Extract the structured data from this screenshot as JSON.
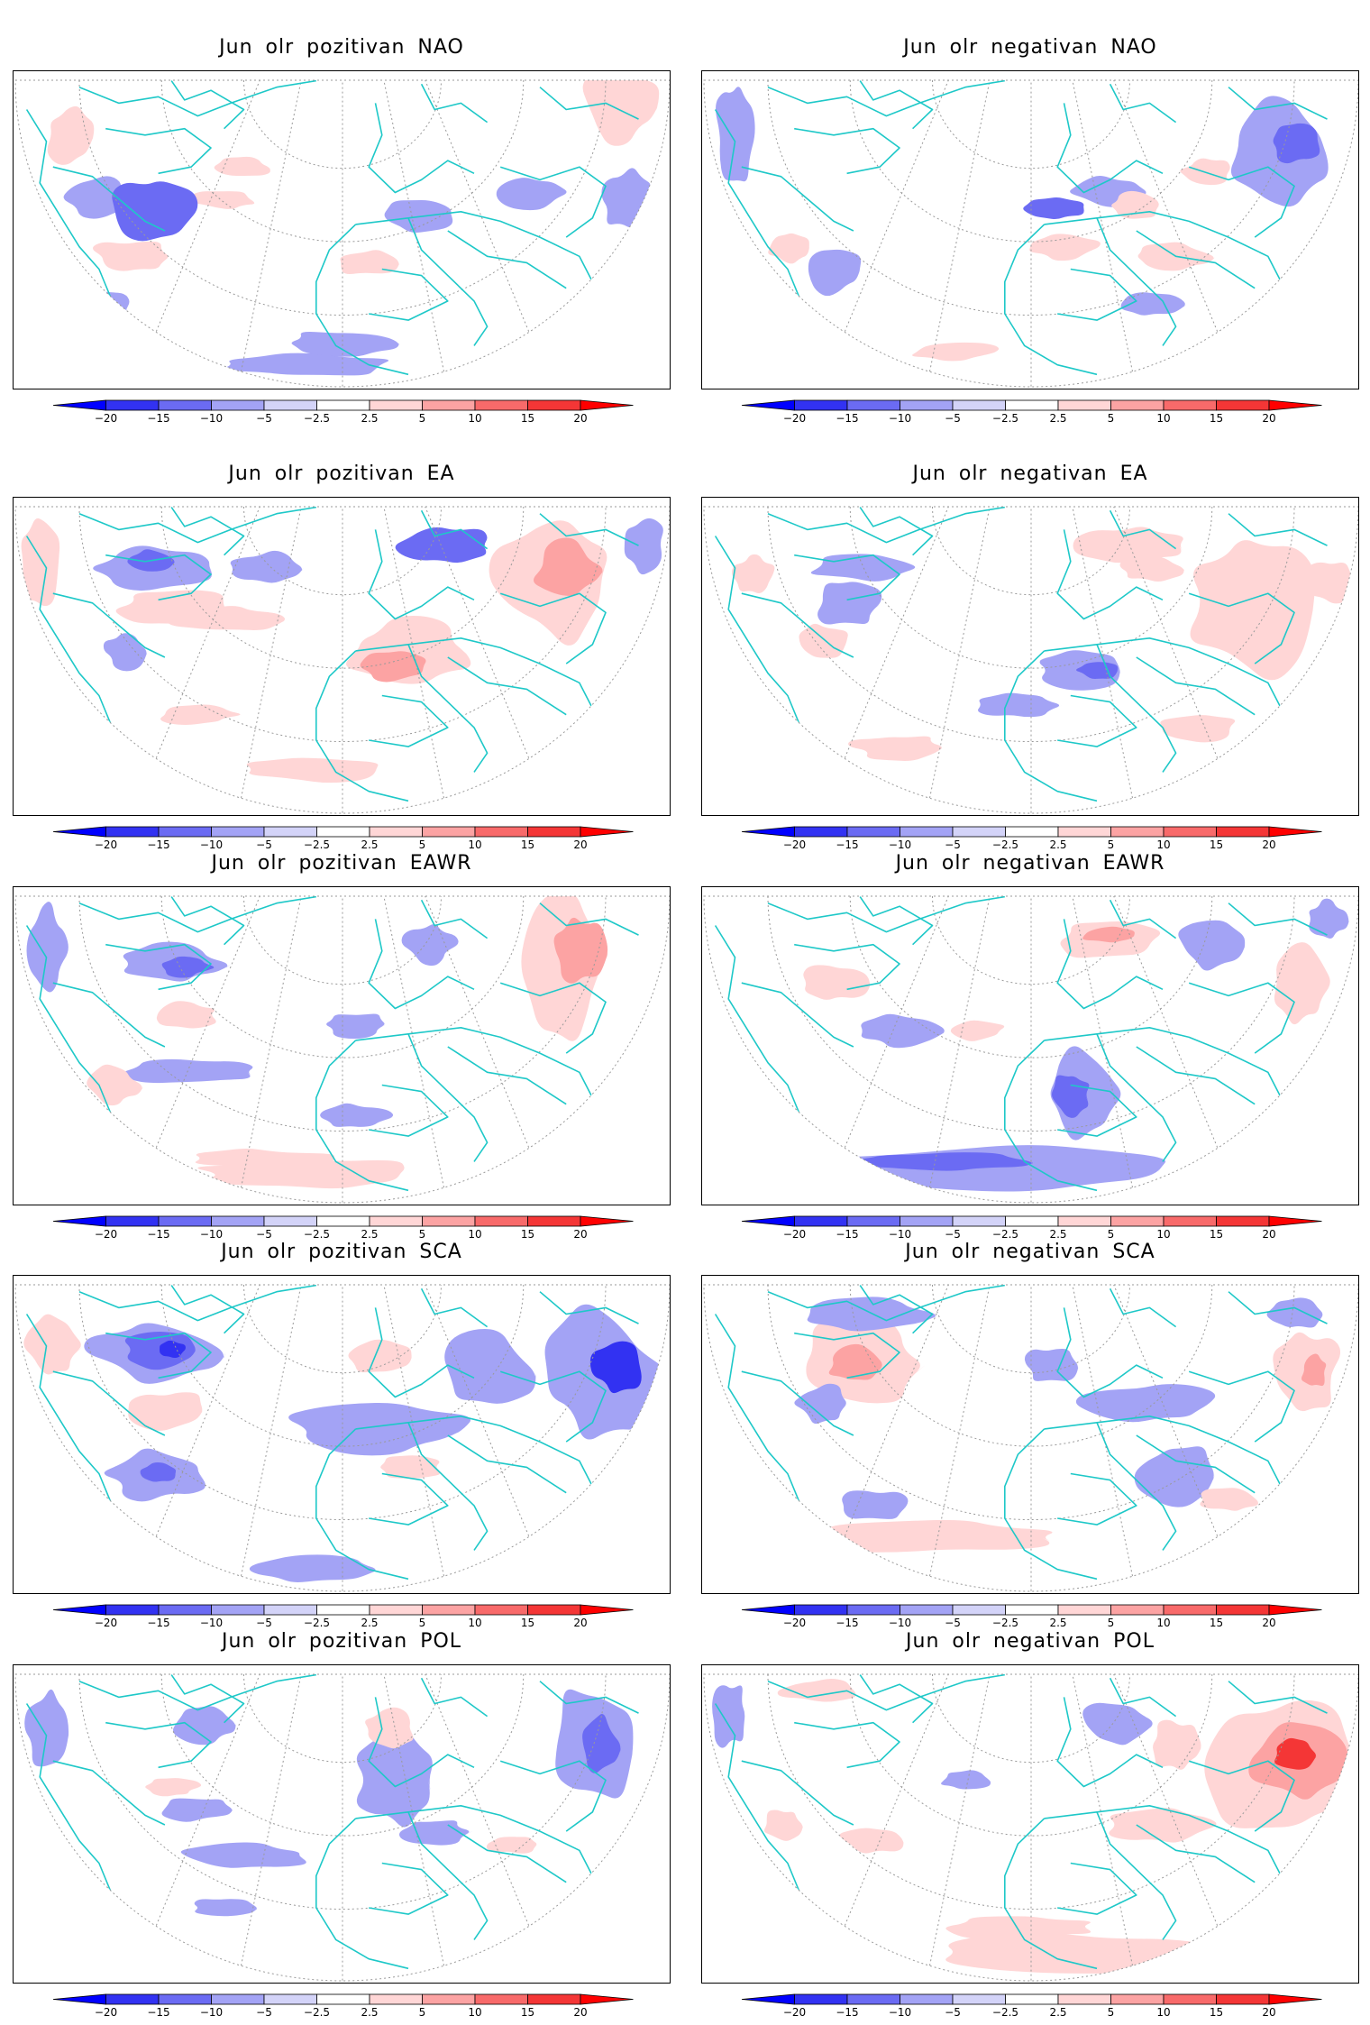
{
  "colorbar": {
    "labels": [
      "−20",
      "−15",
      "−10",
      "−5",
      "−2.5",
      "2.5",
      "5",
      "10",
      "15",
      "20"
    ],
    "colors": [
      "#0000ff",
      "#3232f2",
      "#6b6bf3",
      "#a3a3f5",
      "#d3d3f8",
      "#ffffff",
      "#ffd6d6",
      "#fca3a3",
      "#f86a6a",
      "#f43636",
      "#ff0000"
    ]
  },
  "map_colors": {
    "coast": "#1ec8c8",
    "grid": "#9a9a9a"
  },
  "panels": [
    {
      "title": "Jun olr pozitivan NAO",
      "anomalies": [
        [
          -1,
          0.13,
          0.4,
          0.05,
          0.07
        ],
        [
          -2,
          0.21,
          0.43,
          0.06,
          0.1
        ],
        [
          1,
          0.18,
          0.58,
          0.06,
          0.05
        ],
        [
          1,
          0.54,
          0.6,
          0.05,
          0.04
        ],
        [
          1,
          0.32,
          0.4,
          0.05,
          0.03
        ],
        [
          -1,
          0.62,
          0.45,
          0.06,
          0.05
        ],
        [
          -1,
          0.79,
          0.38,
          0.05,
          0.05
        ],
        [
          -1,
          0.93,
          0.4,
          0.04,
          0.09
        ],
        [
          1,
          0.92,
          0.1,
          0.06,
          0.12
        ],
        [
          1,
          0.09,
          0.2,
          0.04,
          0.1
        ],
        [
          -1,
          0.44,
          0.92,
          0.14,
          0.04
        ],
        [
          -1,
          0.5,
          0.85,
          0.09,
          0.04
        ],
        [
          -1,
          0.14,
          0.75,
          0.04,
          0.06
        ],
        [
          1,
          0.35,
          0.3,
          0.04,
          0.03
        ]
      ]
    },
    {
      "title": "Jun olr negativan NAO",
      "anomalies": [
        [
          -1,
          0.05,
          0.2,
          0.03,
          0.18
        ],
        [
          -1,
          0.88,
          0.25,
          0.08,
          0.16
        ],
        [
          -2,
          0.9,
          0.22,
          0.04,
          0.07
        ],
        [
          -2,
          0.53,
          0.43,
          0.05,
          0.04
        ],
        [
          -1,
          0.62,
          0.38,
          0.06,
          0.05
        ],
        [
          1,
          0.55,
          0.55,
          0.06,
          0.04
        ],
        [
          1,
          0.71,
          0.58,
          0.06,
          0.04
        ],
        [
          1,
          0.66,
          0.42,
          0.04,
          0.04
        ],
        [
          -1,
          0.2,
          0.62,
          0.04,
          0.08
        ],
        [
          1,
          0.13,
          0.55,
          0.03,
          0.05
        ],
        [
          -1,
          0.68,
          0.73,
          0.05,
          0.04
        ],
        [
          1,
          0.38,
          0.88,
          0.07,
          0.03
        ],
        [
          1,
          0.77,
          0.31,
          0.04,
          0.04
        ]
      ]
    },
    {
      "title": "Jun olr pozitivan EA",
      "anomalies": [
        [
          1,
          0.04,
          0.2,
          0.03,
          0.14
        ],
        [
          -1,
          0.22,
          0.22,
          0.1,
          0.07
        ],
        [
          -2,
          0.21,
          0.2,
          0.04,
          0.04
        ],
        [
          1,
          0.25,
          0.35,
          0.1,
          0.06
        ],
        [
          1,
          0.32,
          0.38,
          0.08,
          0.04
        ],
        [
          -1,
          0.38,
          0.22,
          0.06,
          0.05
        ],
        [
          -2,
          0.66,
          0.15,
          0.07,
          0.06
        ],
        [
          1,
          0.6,
          0.48,
          0.1,
          0.1
        ],
        [
          2,
          0.58,
          0.53,
          0.05,
          0.05
        ],
        [
          1,
          0.82,
          0.25,
          0.1,
          0.2
        ],
        [
          2,
          0.84,
          0.22,
          0.05,
          0.08
        ],
        [
          -1,
          0.96,
          0.14,
          0.03,
          0.09
        ],
        [
          1,
          0.45,
          0.85,
          0.1,
          0.04
        ],
        [
          1,
          0.28,
          0.68,
          0.06,
          0.03
        ],
        [
          -1,
          0.17,
          0.48,
          0.03,
          0.06
        ]
      ]
    },
    {
      "title": "Jun olr negativan EA",
      "anomalies": [
        [
          -1,
          0.24,
          0.22,
          0.08,
          0.04
        ],
        [
          -1,
          0.22,
          0.33,
          0.05,
          0.08
        ],
        [
          1,
          0.18,
          0.45,
          0.04,
          0.06
        ],
        [
          1,
          0.84,
          0.33,
          0.1,
          0.23
        ],
        [
          1,
          0.65,
          0.15,
          0.08,
          0.06
        ],
        [
          1,
          0.68,
          0.22,
          0.05,
          0.04
        ],
        [
          -1,
          0.58,
          0.54,
          0.07,
          0.06
        ],
        [
          -2,
          0.6,
          0.54,
          0.03,
          0.03
        ],
        [
          -1,
          0.48,
          0.65,
          0.06,
          0.04
        ],
        [
          1,
          0.3,
          0.78,
          0.07,
          0.04
        ],
        [
          1,
          0.95,
          0.26,
          0.04,
          0.07
        ],
        [
          1,
          0.75,
          0.72,
          0.06,
          0.05
        ],
        [
          1,
          0.08,
          0.24,
          0.03,
          0.06
        ]
      ]
    },
    {
      "title": "Jun olr pozitivan EAWR",
      "anomalies": [
        [
          -1,
          0.05,
          0.2,
          0.03,
          0.14
        ],
        [
          -1,
          0.24,
          0.24,
          0.08,
          0.06
        ],
        [
          -2,
          0.26,
          0.25,
          0.04,
          0.03
        ],
        [
          1,
          0.26,
          0.4,
          0.05,
          0.04
        ],
        [
          1,
          0.84,
          0.25,
          0.06,
          0.22
        ],
        [
          2,
          0.86,
          0.2,
          0.04,
          0.1
        ],
        [
          -1,
          0.63,
          0.18,
          0.04,
          0.06
        ],
        [
          1,
          0.45,
          0.9,
          0.18,
          0.05
        ],
        [
          1,
          0.38,
          0.85,
          0.1,
          0.03
        ],
        [
          -1,
          0.27,
          0.58,
          0.1,
          0.04
        ],
        [
          1,
          0.15,
          0.62,
          0.04,
          0.06
        ],
        [
          -1,
          0.52,
          0.43,
          0.05,
          0.04
        ],
        [
          -1,
          0.52,
          0.72,
          0.05,
          0.04
        ]
      ]
    },
    {
      "title": "Jun olr negativan EAWR",
      "anomalies": [
        [
          -1,
          0.42,
          0.88,
          0.3,
          0.07
        ],
        [
          -2,
          0.35,
          0.86,
          0.14,
          0.03
        ],
        [
          -1,
          0.58,
          0.65,
          0.06,
          0.14
        ],
        [
          -2,
          0.56,
          0.65,
          0.03,
          0.07
        ],
        [
          1,
          0.62,
          0.17,
          0.08,
          0.06
        ],
        [
          2,
          0.62,
          0.15,
          0.04,
          0.03
        ],
        [
          1,
          0.91,
          0.3,
          0.04,
          0.12
        ],
        [
          -1,
          0.78,
          0.18,
          0.06,
          0.08
        ],
        [
          1,
          0.2,
          0.3,
          0.05,
          0.06
        ],
        [
          -1,
          0.3,
          0.45,
          0.06,
          0.05
        ],
        [
          -1,
          0.95,
          0.1,
          0.03,
          0.06
        ],
        [
          1,
          0.42,
          0.45,
          0.04,
          0.03
        ]
      ]
    },
    {
      "title": "Jun olr pozitivan SCA",
      "anomalies": [
        [
          -1,
          0.22,
          0.24,
          0.1,
          0.1
        ],
        [
          -2,
          0.23,
          0.23,
          0.06,
          0.06
        ],
        [
          -3,
          0.24,
          0.23,
          0.02,
          0.03
        ],
        [
          1,
          0.24,
          0.42,
          0.06,
          0.06
        ],
        [
          -1,
          0.22,
          0.62,
          0.08,
          0.08
        ],
        [
          -2,
          0.22,
          0.62,
          0.03,
          0.03
        ],
        [
          1,
          0.06,
          0.22,
          0.04,
          0.1
        ],
        [
          -1,
          0.55,
          0.48,
          0.14,
          0.08
        ],
        [
          -1,
          0.72,
          0.3,
          0.08,
          0.12
        ],
        [
          -1,
          0.89,
          0.3,
          0.09,
          0.2
        ],
        [
          -3,
          0.92,
          0.28,
          0.04,
          0.08
        ],
        [
          1,
          0.56,
          0.25,
          0.05,
          0.06
        ],
        [
          -1,
          0.45,
          0.92,
          0.1,
          0.04
        ],
        [
          1,
          0.6,
          0.6,
          0.05,
          0.04
        ]
      ]
    },
    {
      "title": "Jun olr negativan SCA",
      "anomalies": [
        [
          1,
          0.24,
          0.28,
          0.1,
          0.14
        ],
        [
          2,
          0.23,
          0.28,
          0.04,
          0.06
        ],
        [
          1,
          0.34,
          0.82,
          0.22,
          0.05
        ],
        [
          1,
          0.28,
          0.8,
          0.1,
          0.02
        ],
        [
          -1,
          0.25,
          0.12,
          0.1,
          0.06
        ],
        [
          -1,
          0.18,
          0.4,
          0.04,
          0.06
        ],
        [
          1,
          0.92,
          0.3,
          0.05,
          0.12
        ],
        [
          2,
          0.93,
          0.3,
          0.02,
          0.05
        ],
        [
          -1,
          0.68,
          0.4,
          0.1,
          0.06
        ],
        [
          -1,
          0.72,
          0.62,
          0.06,
          0.1
        ],
        [
          -1,
          0.53,
          0.28,
          0.04,
          0.06
        ],
        [
          -1,
          0.26,
          0.72,
          0.05,
          0.05
        ],
        [
          1,
          0.8,
          0.7,
          0.05,
          0.04
        ],
        [
          -1,
          0.9,
          0.12,
          0.04,
          0.05
        ]
      ]
    },
    {
      "title": "Jun olr pozitivan POL",
      "anomalies": [
        [
          -1,
          0.05,
          0.2,
          0.03,
          0.12
        ],
        [
          -1,
          0.29,
          0.18,
          0.05,
          0.06
        ],
        [
          -1,
          0.58,
          0.36,
          0.06,
          0.14
        ],
        [
          1,
          0.57,
          0.2,
          0.04,
          0.06
        ],
        [
          -1,
          0.88,
          0.25,
          0.06,
          0.2
        ],
        [
          -2,
          0.89,
          0.25,
          0.03,
          0.1
        ],
        [
          -1,
          0.35,
          0.6,
          0.1,
          0.04
        ],
        [
          1,
          0.24,
          0.38,
          0.04,
          0.03
        ],
        [
          -1,
          0.64,
          0.52,
          0.05,
          0.04
        ],
        [
          -1,
          0.28,
          0.45,
          0.06,
          0.04
        ],
        [
          -1,
          0.32,
          0.76,
          0.05,
          0.03
        ],
        [
          1,
          0.76,
          0.56,
          0.04,
          0.03
        ]
      ]
    },
    {
      "title": "Jun olr negativan POL",
      "anomalies": [
        [
          1,
          0.88,
          0.32,
          0.12,
          0.22
        ],
        [
          2,
          0.9,
          0.3,
          0.07,
          0.12
        ],
        [
          3,
          0.9,
          0.28,
          0.03,
          0.05
        ],
        [
          1,
          0.58,
          0.9,
          0.22,
          0.06
        ],
        [
          1,
          0.48,
          0.82,
          0.12,
          0.04
        ],
        [
          -1,
          0.63,
          0.18,
          0.05,
          0.08
        ],
        [
          1,
          0.7,
          0.5,
          0.08,
          0.06
        ],
        [
          1,
          0.72,
          0.25,
          0.04,
          0.08
        ],
        [
          -1,
          0.04,
          0.15,
          0.03,
          0.1
        ],
        [
          1,
          0.18,
          0.08,
          0.06,
          0.04
        ],
        [
          1,
          0.26,
          0.55,
          0.05,
          0.04
        ],
        [
          1,
          0.12,
          0.5,
          0.03,
          0.05
        ],
        [
          -1,
          0.4,
          0.36,
          0.04,
          0.03
        ]
      ]
    }
  ]
}
